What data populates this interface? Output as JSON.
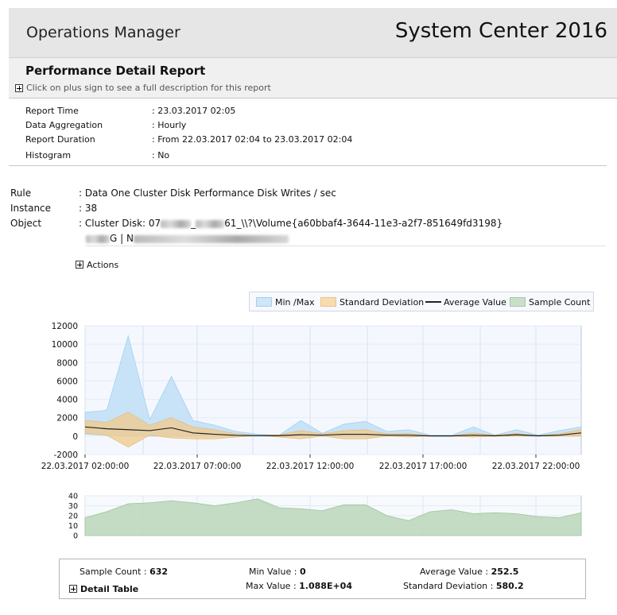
{
  "header": {
    "app_title": "Operations Manager",
    "brand": "System Center 2016"
  },
  "report": {
    "title": "Performance Detail Report",
    "description_hint": "Click on plus sign to see a full description for this report"
  },
  "params": [
    {
      "label": "Report Time",
      "value": ": 23.03.2017 02:05"
    },
    {
      "label": "Data Aggregation",
      "value": ": Hourly"
    },
    {
      "label": "Report Duration",
      "value": ": From  22.03.2017 02:04  to  23.03.2017 02:04"
    },
    {
      "label": "Histogram",
      "value": ": No"
    }
  ],
  "meta": {
    "rule_label": "Rule",
    "rule_value": ": Data One Cluster Disk Performance Disk Writes / sec",
    "instance_label": "Instance",
    "instance_value": ": 38",
    "object_label": "Object",
    "object_prefix": ": Cluster Disk: 07",
    "object_mid": "_",
    "object_suffix": "61_\\\\?\\Volume{a60bbaf4-3644-11e3-a2f7-851649fd3198}",
    "object_line2_mid": "G | N"
  },
  "actions_label": "Actions",
  "legend": [
    {
      "label": "Min /Max",
      "color": "#cfe6f8"
    },
    {
      "label": "Standard Deviation",
      "color": "#f8dcb0"
    },
    {
      "label": "Average Value",
      "color": "#222222"
    },
    {
      "label": "Sample Count",
      "color": "#c8dfc8"
    }
  ],
  "chart_data": [
    {
      "type": "area",
      "ylim": [
        -2000,
        12000
      ],
      "y_ticks": [
        "12000",
        "10000",
        "8000",
        "6000",
        "4000",
        "2000",
        "0",
        "-2000"
      ],
      "x_ticks": [
        "22.03.2017 02:00:00",
        "22.03.2017 07:00:00",
        "22.03.2017 12:00:00",
        "22.03.2017 17:00:00",
        "22.03.2017 22:00:00"
      ],
      "series": [
        {
          "name": "Min /Max",
          "max": [
            2600,
            2800,
            10900,
            1800,
            6500,
            1700,
            1200,
            500,
            200,
            100,
            1700,
            300,
            1300,
            1600,
            500,
            700,
            100,
            100,
            1000,
            100,
            700,
            100,
            600,
            1000
          ],
          "min": [
            200,
            100,
            0,
            0,
            0,
            0,
            0,
            0,
            0,
            0,
            0,
            0,
            0,
            0,
            0,
            0,
            0,
            0,
            0,
            0,
            0,
            0,
            0,
            0
          ]
        },
        {
          "name": "Standard Deviation",
          "upper": [
            1700,
            1500,
            2600,
            1200,
            2000,
            1000,
            700,
            250,
            50,
            150,
            600,
            250,
            600,
            700,
            250,
            300,
            50,
            50,
            350,
            100,
            300,
            50,
            250,
            700
          ],
          "lower": [
            300,
            100,
            -1200,
            100,
            -200,
            -300,
            -300,
            -100,
            50,
            -100,
            -300,
            0,
            -300,
            -300,
            0,
            -100,
            0,
            0,
            -100,
            0,
            0,
            0,
            0,
            0
          ]
        },
        {
          "name": "Average Value",
          "values": [
            1000,
            800,
            700,
            600,
            900,
            350,
            200,
            80,
            50,
            50,
            150,
            100,
            200,
            200,
            100,
            100,
            20,
            20,
            100,
            30,
            150,
            30,
            100,
            350
          ]
        }
      ]
    },
    {
      "type": "area",
      "ylim": [
        0,
        40
      ],
      "y_ticks": [
        "40",
        "30",
        "20",
        "10",
        "0"
      ],
      "series": [
        {
          "name": "Sample Count",
          "values": [
            18,
            24,
            32,
            33,
            35,
            33,
            30,
            33,
            37,
            28,
            27,
            25,
            31,
            31,
            20,
            15,
            24,
            26,
            22,
            23,
            22,
            19,
            18,
            23
          ]
        }
      ]
    }
  ],
  "stats": {
    "sample_count_label": "Sample Count  :",
    "sample_count": "632",
    "min_label": "Min Value  :",
    "min": "0",
    "max_label": "Max Value  :",
    "max": "1.088E+04",
    "avg_label": "Average Value  :",
    "avg": "252.5",
    "std_label": "Standard Deviation  :",
    "std": "580.2",
    "detail_label": "Detail Table"
  }
}
